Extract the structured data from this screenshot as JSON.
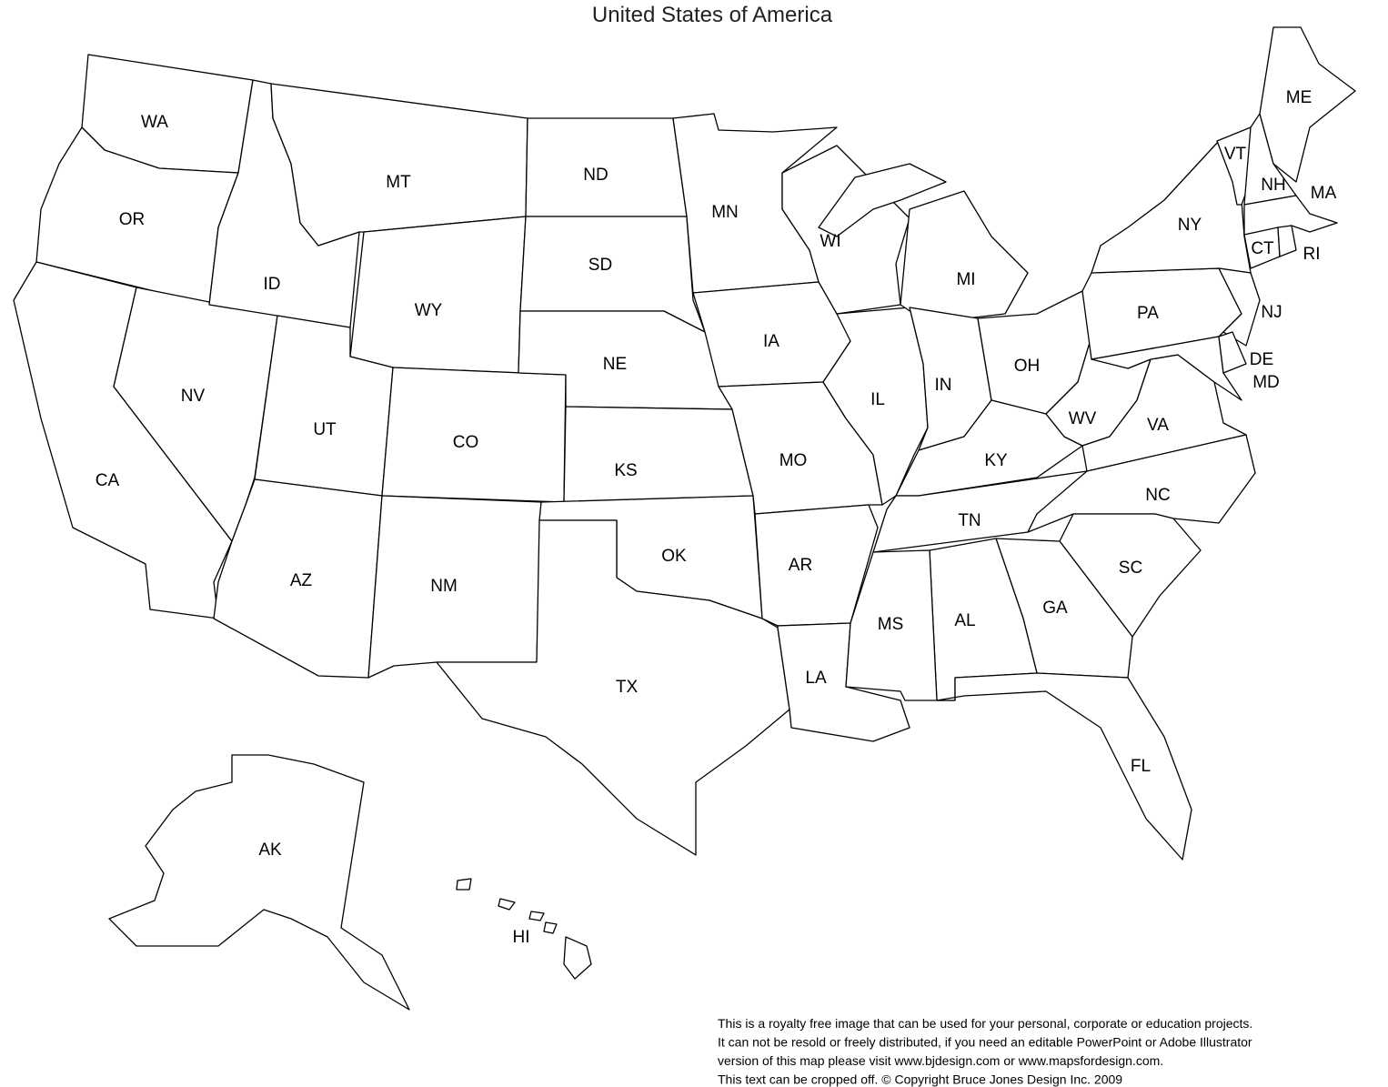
{
  "title": "United States of America",
  "states": [
    "WA",
    "OR",
    "CA",
    "NV",
    "ID",
    "MT",
    "WY",
    "UT",
    "CO",
    "AZ",
    "NM",
    "ND",
    "SD",
    "NE",
    "KS",
    "OK",
    "TX",
    "MN",
    "IA",
    "MO",
    "AR",
    "LA",
    "WI",
    "IL",
    "MI",
    "IN",
    "OH",
    "KY",
    "TN",
    "WV",
    "VA",
    "NC",
    "SC",
    "GA",
    "AL",
    "MS",
    "FL",
    "PA",
    "NY",
    "NJ",
    "MD",
    "DE",
    "VT",
    "NH",
    "ME",
    "MA",
    "CT",
    "RI",
    "AK",
    "HI"
  ],
  "footer": [
    "This is a royalty free image that can be used for your personal, corporate or education projects.",
    "It can not be resold or freely distributed, if you need an editable PowerPoint or Adobe Illustrator",
    "version of this map please visit www.bjdesign.com or www.mapsfordesign.com.",
    "This text can be cropped off.  © Copyright Bruce Jones Design Inc. 2009"
  ]
}
